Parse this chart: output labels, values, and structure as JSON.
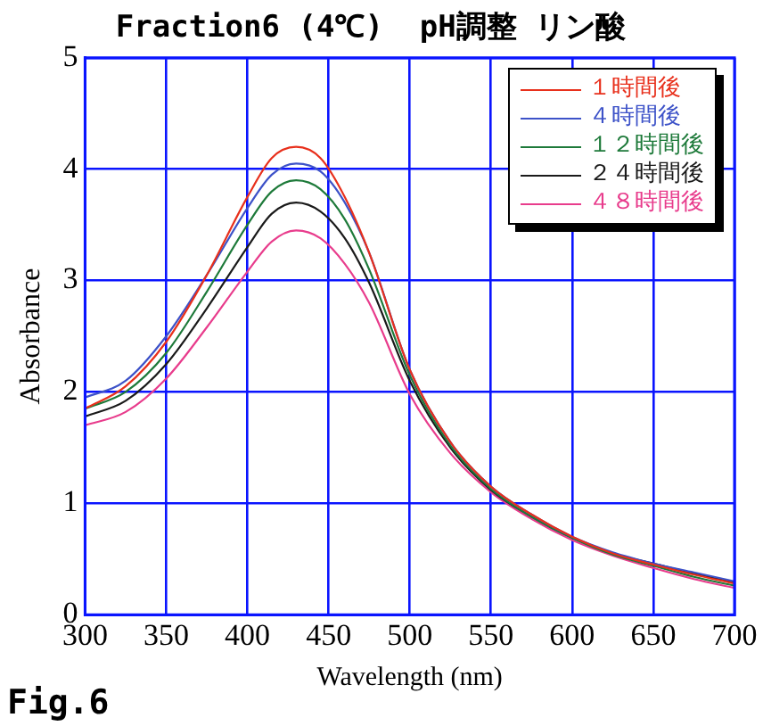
{
  "chart_data": {
    "type": "line",
    "title": "Fraction6 (4℃)  pH調整 リン酸",
    "xlabel": "Wavelength (nm)",
    "ylabel": "Absorbance",
    "annotations": [
      "Fig.6"
    ],
    "x": [
      300,
      325,
      350,
      375,
      400,
      415,
      430,
      445,
      460,
      475,
      500,
      525,
      550,
      575,
      600,
      625,
      650,
      675,
      700
    ],
    "xlim": [
      300,
      700
    ],
    "xticks": [
      300,
      350,
      400,
      450,
      500,
      550,
      600,
      650,
      700
    ],
    "ylim": [
      0,
      5
    ],
    "yticks": [
      0,
      1,
      2,
      3,
      4,
      5
    ],
    "grid": true,
    "legend": "top right",
    "marker": "none",
    "line_style": "solid",
    "series": [
      {
        "name": "１時間後",
        "color": "#e8301c",
        "values": [
          1.85,
          2.05,
          2.45,
          3.05,
          3.75,
          4.1,
          4.2,
          4.1,
          3.75,
          3.25,
          2.2,
          1.55,
          1.15,
          0.9,
          0.7,
          0.55,
          0.45,
          0.36,
          0.28
        ]
      },
      {
        "name": "４時間後",
        "color": "#3d52c8",
        "values": [
          1.95,
          2.1,
          2.5,
          3.05,
          3.65,
          3.95,
          4.05,
          3.98,
          3.7,
          3.25,
          2.2,
          1.55,
          1.15,
          0.9,
          0.7,
          0.56,
          0.46,
          0.38,
          0.3
        ]
      },
      {
        "name": "１２時間後",
        "color": "#1e7a3a",
        "values": [
          1.85,
          2.0,
          2.35,
          2.9,
          3.5,
          3.8,
          3.9,
          3.82,
          3.55,
          3.1,
          2.15,
          1.52,
          1.13,
          0.88,
          0.69,
          0.54,
          0.44,
          0.34,
          0.26
        ]
      },
      {
        "name": "２４時間後",
        "color": "#1a1a1a",
        "values": [
          1.78,
          1.92,
          2.25,
          2.75,
          3.3,
          3.6,
          3.7,
          3.62,
          3.38,
          2.98,
          2.1,
          1.5,
          1.12,
          0.88,
          0.69,
          0.55,
          0.46,
          0.37,
          0.29
        ]
      },
      {
        "name": "４８時間後",
        "color": "#e83c8c",
        "values": [
          1.7,
          1.82,
          2.12,
          2.58,
          3.08,
          3.35,
          3.45,
          3.38,
          3.15,
          2.8,
          1.98,
          1.45,
          1.1,
          0.86,
          0.67,
          0.53,
          0.42,
          0.32,
          0.24
        ]
      }
    ]
  }
}
